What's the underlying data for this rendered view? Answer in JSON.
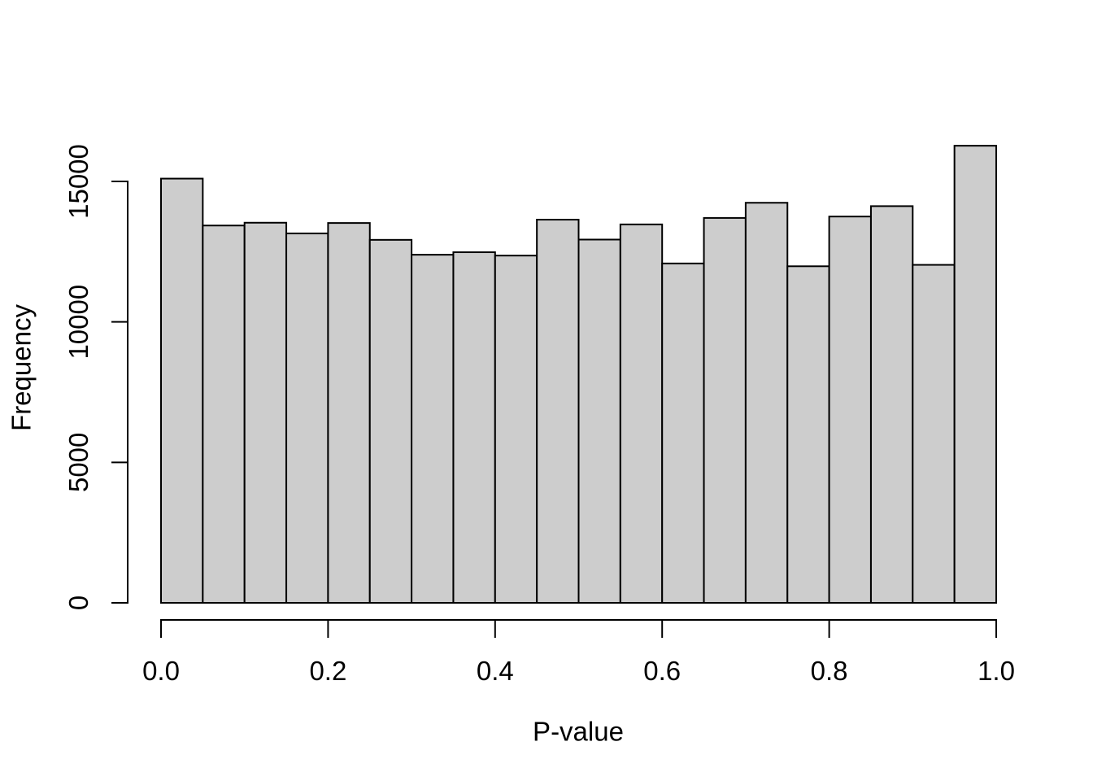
{
  "chart_data": {
    "type": "bar",
    "subtype": "histogram",
    "title": "",
    "xlabel": "P-value",
    "ylabel": "Frequency",
    "bin_edges": [
      0.0,
      0.05,
      0.1,
      0.15,
      0.2,
      0.25,
      0.3,
      0.35,
      0.4,
      0.45,
      0.5,
      0.55,
      0.6,
      0.65,
      0.7,
      0.75,
      0.8,
      0.85,
      0.9,
      0.95,
      1.0
    ],
    "values": [
      15100,
      13430,
      13530,
      13150,
      13520,
      12920,
      12390,
      12480,
      12360,
      13640,
      12930,
      13470,
      12080,
      13700,
      14240,
      11980,
      13750,
      14120,
      12030,
      16270
    ],
    "x_ticks": [
      0.0,
      0.2,
      0.4,
      0.6,
      0.8,
      1.0
    ],
    "x_tick_labels": [
      "0.0",
      "0.2",
      "0.4",
      "0.6",
      "0.8",
      "1.0"
    ],
    "y_ticks": [
      0,
      5000,
      10000,
      15000
    ],
    "y_tick_labels": [
      "0",
      "5000",
      "10000",
      "15000"
    ],
    "xlim": [
      0.0,
      1.0
    ],
    "y_axis_max_tick": 15000,
    "grid": false,
    "legend": false,
    "bar_fill": "#cdcdcd",
    "bar_border": "#000000",
    "axis_color": "#000000",
    "background": "#ffffff"
  }
}
